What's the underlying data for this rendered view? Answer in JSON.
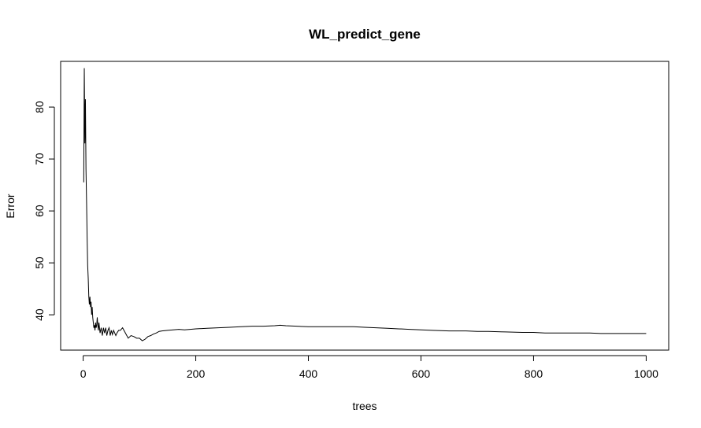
{
  "chart_data": {
    "type": "line",
    "title": "WL_predict_gene",
    "xlabel": "trees",
    "ylabel": "Error",
    "xlim": [
      -40,
      1040
    ],
    "ylim": [
      33.2,
      88.8
    ],
    "xticks": [
      0,
      200,
      400,
      600,
      800,
      1000
    ],
    "yticks": [
      40,
      50,
      60,
      70,
      80
    ],
    "grid": false,
    "legend": "none",
    "line_color": "#000000",
    "series": [
      {
        "x": [
          1,
          2,
          3,
          4,
          5,
          6,
          7,
          8,
          9,
          10,
          11,
          12,
          13,
          14,
          15,
          16,
          17,
          18,
          19,
          20,
          21,
          22,
          23,
          24,
          25,
          26,
          27,
          28,
          29,
          30,
          32,
          34,
          36,
          38,
          40,
          42,
          44,
          46,
          48,
          50,
          52,
          54,
          56,
          58,
          60,
          63,
          66,
          70,
          75,
          80,
          85,
          90,
          95,
          100,
          105,
          110,
          115,
          120,
          125,
          130,
          135,
          140,
          150,
          160,
          170,
          180,
          190,
          200,
          220,
          240,
          260,
          280,
          300,
          320,
          340,
          350,
          360,
          380,
          400,
          420,
          440,
          460,
          480,
          500,
          520,
          540,
          560,
          580,
          600,
          620,
          650,
          680,
          700,
          720,
          750,
          780,
          800,
          820,
          850,
          880,
          900,
          920,
          950,
          980,
          1000
        ],
        "y": [
          65.5,
          87.5,
          73.0,
          81.5,
          68.0,
          62.0,
          55.0,
          49.5,
          47.0,
          43.5,
          42.0,
          43.5,
          41.5,
          42.5,
          40.0,
          41.5,
          39.5,
          38.5,
          37.5,
          38.0,
          37.0,
          38.5,
          37.5,
          38.0,
          39.5,
          38.0,
          37.0,
          38.5,
          37.5,
          36.5,
          37.5,
          36.0,
          37.5,
          36.5,
          37.5,
          36.0,
          37.0,
          37.5,
          36.0,
          37.0,
          36.2,
          37.0,
          36.5,
          36.0,
          36.5,
          37.0,
          37.0,
          37.5,
          36.5,
          35.5,
          36.0,
          35.8,
          35.5,
          35.5,
          35.0,
          35.3,
          35.8,
          36.0,
          36.3,
          36.5,
          36.8,
          36.9,
          37.0,
          37.1,
          37.2,
          37.1,
          37.2,
          37.3,
          37.4,
          37.5,
          37.6,
          37.7,
          37.8,
          37.8,
          37.9,
          38.0,
          37.9,
          37.8,
          37.7,
          37.7,
          37.7,
          37.7,
          37.7,
          37.6,
          37.5,
          37.4,
          37.3,
          37.2,
          37.1,
          37.0,
          36.9,
          36.9,
          36.8,
          36.8,
          36.7,
          36.6,
          36.6,
          36.5,
          36.5,
          36.5,
          36.5,
          36.4,
          36.4,
          36.4,
          36.4
        ]
      }
    ]
  }
}
